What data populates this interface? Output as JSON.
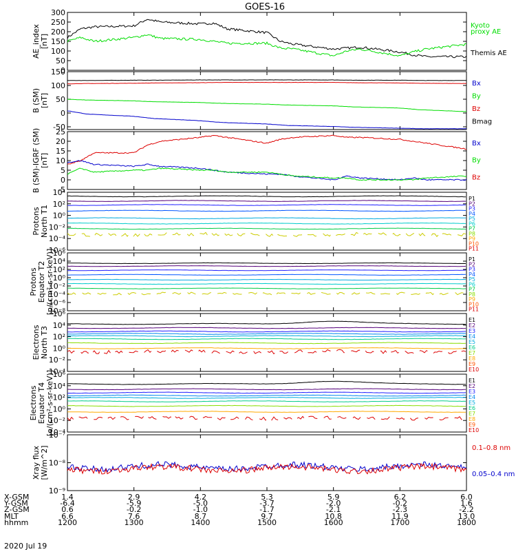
{
  "title": "GOES-16",
  "date_label": "2020 Jul 19",
  "colors": {
    "black": "#000000",
    "green": "#00dd00",
    "red": "#dd0000",
    "blue": "#0000cc"
  },
  "chart_data": [
    {
      "type": "line",
      "ylabel": [
        "AE_index",
        "[nT]"
      ],
      "ylim": [
        0,
        300
      ],
      "yticks": [
        "300",
        "250",
        "200",
        "150",
        "100",
        "50",
        "0"
      ],
      "ytick_values": [
        300,
        250,
        200,
        150,
        100,
        50,
        0
      ],
      "x": [
        1200,
        1220,
        1240,
        1300,
        1320,
        1340,
        1400,
        1420,
        1440,
        1500,
        1520,
        1540,
        1600,
        1620,
        1640,
        1700,
        1720,
        1740,
        1800
      ],
      "series": [
        {
          "name": "Themis AE",
          "color": "#000000",
          "values": [
            170,
            215,
            225,
            230,
            265,
            250,
            240,
            245,
            215,
            195,
            150,
            135,
            110,
            115,
            120,
            95,
            80,
            70,
            70
          ]
        },
        {
          "name": "Kyoto proxy AE",
          "color": "#00dd00",
          "values": [
            150,
            170,
            150,
            170,
            185,
            165,
            160,
            150,
            140,
            140,
            115,
            110,
            75,
            100,
            110,
            75,
            95,
            110,
            135
          ]
        }
      ],
      "legend": [
        "Kyoto",
        "proxy AE",
        "Themis AE"
      ],
      "legend_colors": [
        "#00dd00",
        "#00dd00",
        "#000000"
      ]
    },
    {
      "type": "line",
      "ylabel": [
        "B (SM)",
        "[nT]"
      ],
      "ylim": [
        -60,
        150
      ],
      "yticks": [
        "150",
        "100",
        "50",
        "0",
        "-50"
      ],
      "ytick_values": [
        150,
        100,
        50,
        0,
        -50
      ],
      "x": [
        1200,
        1230,
        1300,
        1330,
        1400,
        1430,
        1500,
        1530,
        1600,
        1630,
        1700,
        1730,
        1800
      ],
      "series": [
        {
          "name": "Bmag",
          "color": "#000000",
          "values": [
            118,
            118,
            119,
            119,
            120,
            120,
            120,
            120,
            120,
            119,
            119,
            118,
            118
          ]
        },
        {
          "name": "Bz",
          "color": "#dd0000",
          "values": [
            106,
            107,
            108,
            109,
            110,
            111,
            111,
            111,
            111,
            110,
            109,
            108,
            107
          ]
        },
        {
          "name": "By",
          "color": "#00dd00",
          "values": [
            50,
            47,
            44,
            41,
            38,
            35,
            32,
            29,
            26,
            22,
            18,
            12,
            5
          ]
        },
        {
          "name": "Bx",
          "color": "#0000cc",
          "values": [
            8,
            -4,
            -12,
            -20,
            -28,
            -34,
            -40,
            -45,
            -49,
            -52,
            -55,
            -57,
            -57
          ]
        }
      ],
      "legend": [
        "Bx",
        "By",
        "Bz",
        "Bmag"
      ],
      "legend_colors": [
        "#0000cc",
        "#00dd00",
        "#dd0000",
        "#000000"
      ]
    },
    {
      "type": "line",
      "ylabel": [
        "B (SM)-IGRF (SM)",
        "[nT]"
      ],
      "ylim": [
        -5,
        25
      ],
      "yticks": [
        "25",
        "20",
        "15",
        "10",
        "5",
        "0",
        "-5"
      ],
      "ytick_values": [
        25,
        20,
        15,
        10,
        5,
        0,
        -5
      ],
      "x": [
        1200,
        1220,
        1240,
        1300,
        1320,
        1340,
        1400,
        1420,
        1440,
        1500,
        1520,
        1540,
        1600,
        1620,
        1640,
        1700,
        1720,
        1740,
        1800
      ],
      "series": [
        {
          "name": "Bz",
          "color": "#dd0000",
          "values": [
            8,
            10,
            14,
            14,
            18,
            20,
            22,
            23,
            22,
            19,
            21,
            22,
            23,
            22,
            22,
            21,
            20,
            19,
            16
          ]
        },
        {
          "name": "Bx",
          "color": "#0000cc",
          "values": [
            9,
            10,
            8,
            7,
            8,
            7,
            6,
            5,
            4,
            3,
            3,
            2,
            0,
            2,
            1,
            0,
            1,
            0,
            0
          ]
        },
        {
          "name": "By",
          "color": "#00dd00",
          "values": [
            3,
            6,
            4,
            5,
            5,
            6,
            5,
            5,
            4,
            4,
            3,
            2,
            1,
            1,
            0,
            0,
            0,
            1,
            2
          ]
        }
      ],
      "legend": [
        "Bx",
        "By",
        "Bz"
      ],
      "legend_colors": [
        "#0000cc",
        "#00dd00",
        "#dd0000"
      ]
    },
    {
      "type": "line",
      "log": true,
      "ylabel": [
        "Protons",
        "North T1"
      ],
      "ylim": [
        -6,
        4
      ],
      "yticks": [
        "10⁴",
        "10²",
        "10⁰",
        "10⁻²",
        "10⁻⁴",
        "10⁻⁶"
      ],
      "ytick_values": [
        4,
        2,
        0,
        -2,
        -4,
        -6
      ],
      "legend": [
        "P1",
        "P2",
        "P3",
        "P4",
        "P5",
        "P6",
        "P7",
        "P8",
        "P9",
        "P10",
        "P11"
      ],
      "legend_colors": [
        "#000000",
        "#55007a",
        "#2020ff",
        "#0055ff",
        "#00aadd",
        "#00cccc",
        "#00cc44",
        "#88dd00",
        "#ffaa00",
        "#ff5500",
        "#dd0000"
      ],
      "levels": [
        3.3,
        2.5,
        1.8,
        0.8,
        -0.5,
        -1.4,
        -2.3,
        -3.3
      ],
      "level_colors": [
        "#000000",
        "#55007a",
        "#2020ff",
        "#0055ff",
        "#00aadd",
        "#00cccc",
        "#00cc44",
        "#cccc00"
      ]
    },
    {
      "type": "line",
      "log": true,
      "ylabel": [
        "Protons",
        "Equator T2",
        "[p/(cm²-s-sr-keV)]"
      ],
      "ylim": [
        -8,
        6
      ],
      "yticks": [
        "10⁶",
        "10⁴",
        "10²",
        "10⁰",
        "10⁻²",
        "10⁻⁴",
        "10⁻⁶",
        "10⁻⁸"
      ],
      "ytick_values": [
        6,
        4,
        2,
        0,
        -2,
        -4,
        -6,
        -8
      ],
      "legend": [
        "P1",
        "P2",
        "P3",
        "P4",
        "P5",
        "P6",
        "P7",
        "P8",
        "P9",
        "P10",
        "P11"
      ],
      "legend_colors": [
        "#000000",
        "#55007a",
        "#2020ff",
        "#0055ff",
        "#00aadd",
        "#00cccc",
        "#00cc44",
        "#88dd00",
        "#ffaa00",
        "#ff5500",
        "#dd0000"
      ],
      "levels": [
        3.5,
        2.8,
        1.8,
        0.7,
        -0.5,
        -1.5,
        -2.6,
        -3.8
      ],
      "level_colors": [
        "#000000",
        "#55007a",
        "#2020ff",
        "#0055ff",
        "#00aadd",
        "#00cccc",
        "#00cc44",
        "#cccc00"
      ]
    },
    {
      "type": "line",
      "log": true,
      "ylabel": [
        "Electrons",
        "North T3"
      ],
      "ylim": [
        -4,
        6
      ],
      "yticks": [
        "10⁶",
        "10⁴",
        "10²",
        "10⁰",
        "10⁻²",
        "10⁻⁴"
      ],
      "ytick_values": [
        6,
        4,
        2,
        0,
        -2,
        -4
      ],
      "legend": [
        "E1",
        "E2",
        "E3",
        "E4",
        "E5",
        "E6",
        "E7",
        "E8",
        "E9",
        "E10"
      ],
      "legend_colors": [
        "#000000",
        "#55007a",
        "#2020ff",
        "#0088ee",
        "#00aadd",
        "#00cc88",
        "#88dd00",
        "#ffaa00",
        "#ff5500",
        "#dd0000"
      ],
      "levels": [
        4.2,
        3.5,
        2.9,
        2.5,
        2.1,
        1.6,
        0.9,
        0,
        -0.6
      ],
      "level_colors": [
        "#000000",
        "#55007a",
        "#2020ff",
        "#0088ee",
        "#00aadd",
        "#00cc88",
        "#88dd00",
        "#ffaa00",
        "#dd0000"
      ]
    },
    {
      "type": "line",
      "log": true,
      "ylabel": [
        "Electrons",
        "Equator T4",
        "[e/(cm²-s-sr-keV)]"
      ],
      "ylim": [
        -4,
        6
      ],
      "yticks": [
        "10⁶",
        "10⁴",
        "10²",
        "10⁰",
        "10⁻²",
        "10⁻⁴"
      ],
      "ytick_values": [
        6,
        4,
        2,
        0,
        -2,
        -4
      ],
      "legend": [
        "E1",
        "E2",
        "E3",
        "E4",
        "E5",
        "E6",
        "E7",
        "E8",
        "E9",
        "E10"
      ],
      "legend_colors": [
        "#000000",
        "#55007a",
        "#2020ff",
        "#0088ee",
        "#00aadd",
        "#00cc88",
        "#88dd00",
        "#ffaa00",
        "#ff5500",
        "#dd0000"
      ],
      "levels": [
        4.3,
        3.4,
        2.8,
        2.3,
        1.9,
        1.3,
        0.5,
        -0.5,
        -1.6
      ],
      "level_colors": [
        "#000000",
        "#55007a",
        "#2020ff",
        "#0088ee",
        "#00aadd",
        "#00cc88",
        "#88dd00",
        "#ffaa00",
        "#dd0000"
      ]
    },
    {
      "type": "line",
      "log": true,
      "ylabel": [
        "Xray flux",
        "[W/m^2]"
      ],
      "ylim": [
        -9,
        -7
      ],
      "yticks": [
        "10⁻⁷",
        "10⁻⁸",
        "10⁻⁹"
      ],
      "ytick_values": [
        -7,
        -8,
        -9
      ],
      "series": [
        {
          "name": "0.05-0.4 nm",
          "color": "#0000cc",
          "base": -8.15
        },
        {
          "name": "0.1-0.8 nm",
          "color": "#dd0000",
          "base": -8.22
        }
      ],
      "legend": [
        "0.1–0.8 nm",
        "0.05–0.4 nm"
      ],
      "legend_colors": [
        "#dd0000",
        "#0000cc"
      ]
    }
  ],
  "x_axis": {
    "row_labels": [
      "X-GSM",
      "Y-GSM",
      "Z-GSM",
      "MLT",
      "hhmm"
    ],
    "columns": [
      {
        "x": 1200,
        "vals": [
          "1.4",
          "-6.4",
          "0.6",
          "6.6",
          "1200"
        ]
      },
      {
        "x": 1300,
        "vals": [
          "2.9",
          "-5.9",
          "-0.2",
          "7.6",
          "1300"
        ]
      },
      {
        "x": 1400,
        "vals": [
          "4.2",
          "-5.0",
          "-1.0",
          "8.7",
          "1400"
        ]
      },
      {
        "x": 1500,
        "vals": [
          "5.3",
          "-3.7",
          "-1.7",
          "9.7",
          "1500"
        ]
      },
      {
        "x": 1600,
        "vals": [
          "5.9",
          "-2.0",
          "-2.1",
          "10.8",
          "1600"
        ]
      },
      {
        "x": 1700,
        "vals": [
          "6.2",
          "-0.2",
          "-2.3",
          "11.9",
          "1700"
        ]
      },
      {
        "x": 1800,
        "vals": [
          "6.0",
          "1.6",
          "-2.2",
          "13.0",
          "1800"
        ]
      }
    ],
    "xlim": [
      1200,
      1800
    ]
  }
}
